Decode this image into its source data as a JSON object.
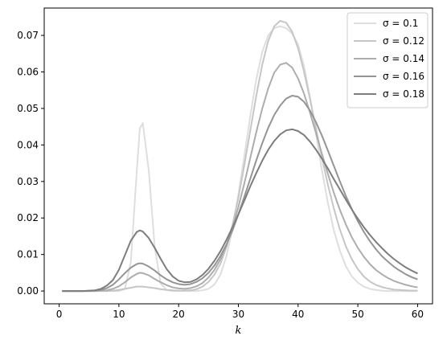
{
  "chart_data": {
    "type": "line",
    "title": "",
    "xlabel": "k",
    "ylabel": "",
    "xlim": [
      -2.5,
      62.5
    ],
    "ylim": [
      -0.0035,
      0.0775
    ],
    "xticks": [
      0,
      10,
      20,
      30,
      40,
      50,
      60
    ],
    "yticks": [
      0.0,
      0.01,
      0.02,
      0.03,
      0.04,
      0.05,
      0.06,
      0.07
    ],
    "ytick_labels": [
      "0.00",
      "0.01",
      "0.02",
      "0.03",
      "0.04",
      "0.05",
      "0.06",
      "0.07"
    ],
    "grid": false,
    "legend_position": "top-right",
    "x": [
      0.5,
      2,
      4,
      6,
      7,
      8,
      9,
      10,
      11,
      12,
      13,
      13.5,
      14,
      15,
      16,
      17,
      18,
      19,
      20,
      21,
      22,
      23,
      24,
      25,
      26,
      27,
      28,
      29,
      30,
      31,
      32,
      33,
      34,
      35,
      36,
      37,
      38,
      39,
      40,
      41,
      42,
      43,
      44,
      45,
      46,
      47,
      48,
      49,
      50,
      51,
      52,
      53,
      54,
      55,
      56,
      57,
      58,
      59,
      60
    ],
    "series": [
      {
        "name": "σ = 0.1",
        "color": "#dedede",
        "values": [
          0,
          0,
          0,
          0,
          0,
          0,
          0,
          0,
          0.0005,
          0.008,
          0.033,
          0.0445,
          0.046,
          0.033,
          0.012,
          0.002,
          0.0003,
          0,
          0,
          0,
          0,
          0,
          0.0002,
          0.0006,
          0.0018,
          0.0045,
          0.0095,
          0.017,
          0.0265,
          0.037,
          0.048,
          0.058,
          0.0655,
          0.07,
          0.072,
          0.0725,
          0.072,
          0.0705,
          0.0675,
          0.0615,
          0.053,
          0.043,
          0.033,
          0.024,
          0.0165,
          0.011,
          0.0068,
          0.004,
          0.0023,
          0.0012,
          0.0006,
          0.0003,
          0.0001,
          0,
          0,
          0,
          0,
          0,
          0
        ]
      },
      {
        "name": "σ = 0.12",
        "color": "#c6c6c6",
        "values": [
          0,
          0,
          0,
          0,
          0,
          0,
          0.0001,
          0.0003,
          0.0006,
          0.0009,
          0.0012,
          0.0012,
          0.0012,
          0.001,
          0.0008,
          0.0005,
          0.0003,
          0.0002,
          0.0001,
          0.0001,
          0.0002,
          0.0005,
          0.0012,
          0.0025,
          0.0045,
          0.0075,
          0.012,
          0.018,
          0.0255,
          0.0345,
          0.044,
          0.0535,
          0.062,
          0.0685,
          0.0725,
          0.074,
          0.0735,
          0.071,
          0.0665,
          0.06,
          0.0525,
          0.0445,
          0.0365,
          0.029,
          0.0225,
          0.0168,
          0.0122,
          0.0087,
          0.006,
          0.004,
          0.0026,
          0.0017,
          0.0011,
          0.0007,
          0.0004,
          0.0003,
          0.0002,
          0.0001,
          0.0001
        ]
      },
      {
        "name": "σ = 0.14",
        "color": "#adadad",
        "values": [
          0,
          0,
          0,
          0,
          0.0001,
          0.0002,
          0.0006,
          0.0013,
          0.0024,
          0.0037,
          0.0047,
          0.005,
          0.0049,
          0.0043,
          0.0033,
          0.0024,
          0.0016,
          0.001,
          0.0007,
          0.0006,
          0.0008,
          0.0013,
          0.0022,
          0.0037,
          0.0058,
          0.0087,
          0.0125,
          0.0173,
          0.023,
          0.0295,
          0.0365,
          0.0435,
          0.05,
          0.0555,
          0.0598,
          0.062,
          0.0625,
          0.0612,
          0.0582,
          0.054,
          0.0488,
          0.0432,
          0.0375,
          0.032,
          0.0268,
          0.0222,
          0.0182,
          0.0147,
          0.0118,
          0.0094,
          0.0074,
          0.0058,
          0.0046,
          0.0036,
          0.0028,
          0.0022,
          0.0017,
          0.0013,
          0.001
        ]
      },
      {
        "name": "σ = 0.16",
        "color": "#959595",
        "values": [
          0,
          0,
          0,
          0.0001,
          0.0003,
          0.0008,
          0.0017,
          0.0032,
          0.0049,
          0.0064,
          0.0074,
          0.0076,
          0.0075,
          0.0067,
          0.0056,
          0.0043,
          0.0032,
          0.0024,
          0.0019,
          0.0017,
          0.0019,
          0.0025,
          0.0035,
          0.005,
          0.007,
          0.0096,
          0.0127,
          0.0165,
          0.021,
          0.0258,
          0.0308,
          0.0358,
          0.0405,
          0.0447,
          0.0482,
          0.0508,
          0.0527,
          0.0535,
          0.0532,
          0.0518,
          0.0494,
          0.0462,
          0.0425,
          0.0384,
          0.0342,
          0.03,
          0.026,
          0.0224,
          0.0191,
          0.0162,
          0.0137,
          0.0115,
          0.0096,
          0.0081,
          0.0067,
          0.0056,
          0.0046,
          0.0038,
          0.0032
        ]
      },
      {
        "name": "σ = 0.18",
        "color": "#7d7d7d",
        "values": [
          0,
          0,
          0,
          0.0002,
          0.0006,
          0.0015,
          0.003,
          0.0058,
          0.0098,
          0.0138,
          0.0162,
          0.0166,
          0.0163,
          0.0145,
          0.0118,
          0.0088,
          0.006,
          0.004,
          0.0028,
          0.0024,
          0.0025,
          0.0032,
          0.0044,
          0.0061,
          0.0083,
          0.0109,
          0.014,
          0.0174,
          0.021,
          0.0248,
          0.0287,
          0.0323,
          0.0357,
          0.0387,
          0.0411,
          0.0429,
          0.044,
          0.0443,
          0.0438,
          0.0427,
          0.0409,
          0.0387,
          0.0362,
          0.0335,
          0.0306,
          0.0278,
          0.025,
          0.0223,
          0.0198,
          0.0175,
          0.0154,
          0.0135,
          0.0118,
          0.0102,
          0.0088,
          0.0076,
          0.0065,
          0.0056,
          0.0048
        ]
      }
    ]
  }
}
